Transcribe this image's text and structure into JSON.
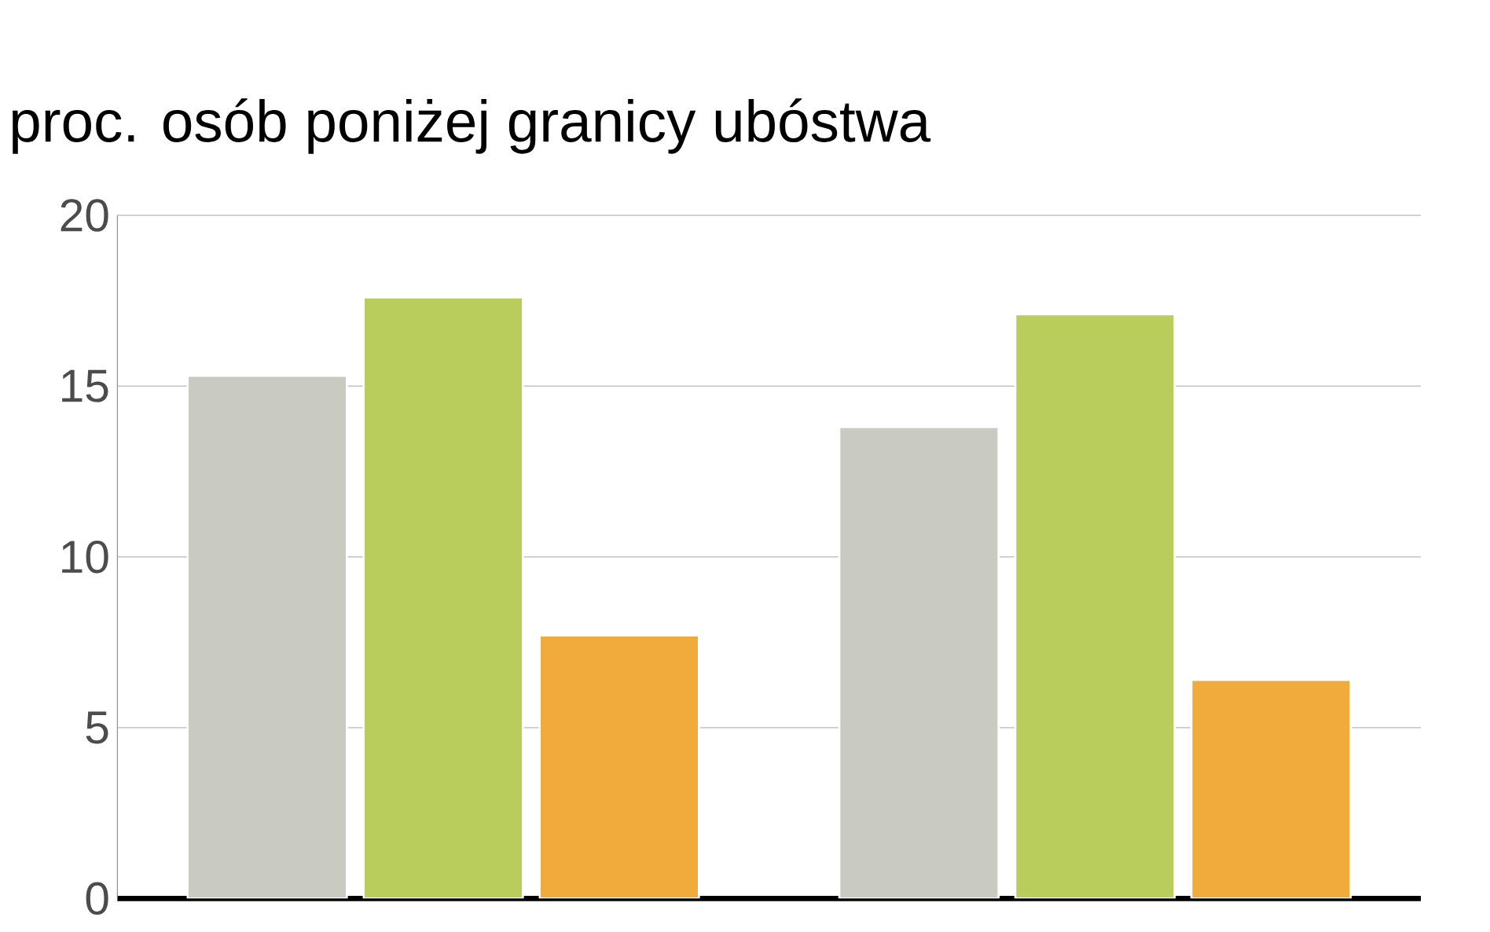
{
  "chart_data": {
    "type": "bar",
    "title": "proc. osób poniżej granicy ubóstwa",
    "categories": [
      null,
      null
    ],
    "series": [
      {
        "color": "#c9cac1",
        "values": [
          15.3,
          13.8
        ]
      },
      {
        "color": "#b8cd5c",
        "values": [
          17.6,
          17.1
        ]
      },
      {
        "color": "#f0ab3c",
        "values": [
          7.7,
          6.4
        ]
      }
    ],
    "ylim": [
      0,
      20
    ],
    "yticks": [
      0,
      5,
      10,
      15,
      20
    ],
    "grid": "y"
  }
}
